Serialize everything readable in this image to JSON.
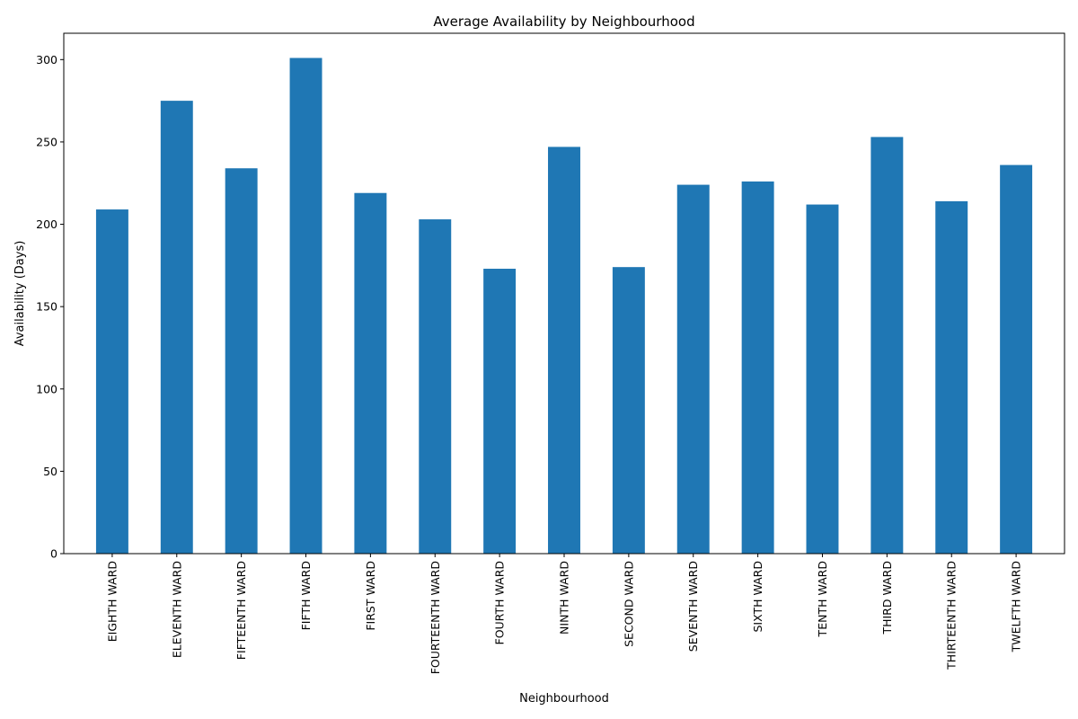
{
  "chart_data": {
    "type": "bar",
    "title": "Average Availability by Neighbourhood",
    "xlabel": "Neighbourhood",
    "ylabel": "Availability (Days)",
    "ylim": [
      0,
      316
    ],
    "yticks": [
      0,
      50,
      100,
      150,
      200,
      250,
      300
    ],
    "categories": [
      "EIGHTH WARD",
      "ELEVENTH WARD",
      "FIFTEENTH WARD",
      "FIFTH WARD",
      "FIRST WARD",
      "FOURTEENTH WARD",
      "FOURTH WARD",
      "NINTH WARD",
      "SECOND WARD",
      "SEVENTH WARD",
      "SIXTH WARD",
      "TENTH WARD",
      "THIRD WARD",
      "THIRTEENTH WARD",
      "TWELFTH WARD"
    ],
    "values": [
      209,
      275,
      234,
      301,
      219,
      203,
      173,
      247,
      174,
      224,
      226,
      212,
      253,
      214,
      236
    ],
    "grid": false,
    "legend": "none",
    "bar_color": "#1f77b4"
  }
}
